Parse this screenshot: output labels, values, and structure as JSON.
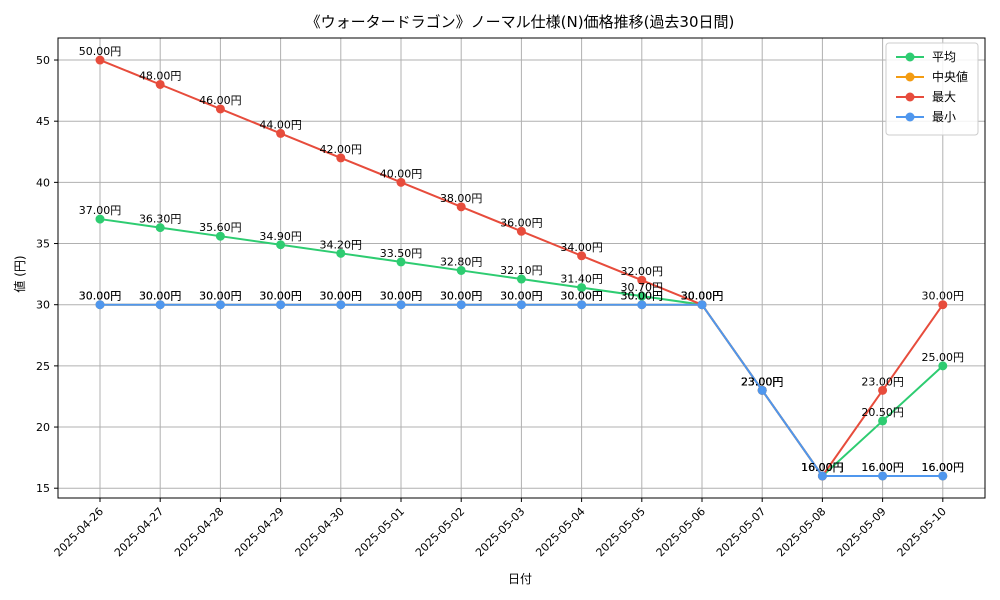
{
  "chart_data": {
    "type": "line",
    "title": "《ウォータードラゴン》ノーマル仕様(N)価格推移(過去30日間)",
    "xlabel": "日付",
    "ylabel": "値 (円)",
    "categories": [
      "2025-04-26",
      "2025-04-27",
      "2025-04-28",
      "2025-04-29",
      "2025-04-30",
      "2025-05-01",
      "2025-05-02",
      "2025-05-03",
      "2025-05-04",
      "2025-05-05",
      "2025-05-06",
      "2025-05-07",
      "2025-05-08",
      "2025-05-09",
      "2025-05-10"
    ],
    "ylim": [
      14.2,
      51.8
    ],
    "yticks": [
      15,
      20,
      25,
      30,
      35,
      40,
      45,
      50
    ],
    "grid": true,
    "legend_position": "top-right",
    "label_suffix": "円",
    "series": [
      {
        "name": "平均",
        "color": "#2ecc71",
        "values": [
          37.0,
          36.3,
          35.6,
          34.9,
          34.2,
          33.5,
          32.8,
          32.1,
          31.4,
          30.7,
          30.0,
          23.0,
          16.0,
          20.5,
          25.0
        ]
      },
      {
        "name": "中央値",
        "color": "#f39c12",
        "values": [
          30.0,
          30.0,
          30.0,
          30.0,
          30.0,
          30.0,
          30.0,
          30.0,
          30.0,
          30.0,
          30.0,
          23.0,
          16.0,
          16.0,
          16.0
        ]
      },
      {
        "name": "最大",
        "color": "#e74c3c",
        "values": [
          50.0,
          48.0,
          46.0,
          44.0,
          42.0,
          40.0,
          38.0,
          36.0,
          34.0,
          32.0,
          30.0,
          23.0,
          16.0,
          23.0,
          30.0
        ]
      },
      {
        "name": "最小",
        "color": "#4f97ee",
        "values": [
          30.0,
          30.0,
          30.0,
          30.0,
          30.0,
          30.0,
          30.0,
          30.0,
          30.0,
          30.0,
          30.0,
          23.0,
          16.0,
          16.0,
          16.0
        ]
      }
    ]
  }
}
